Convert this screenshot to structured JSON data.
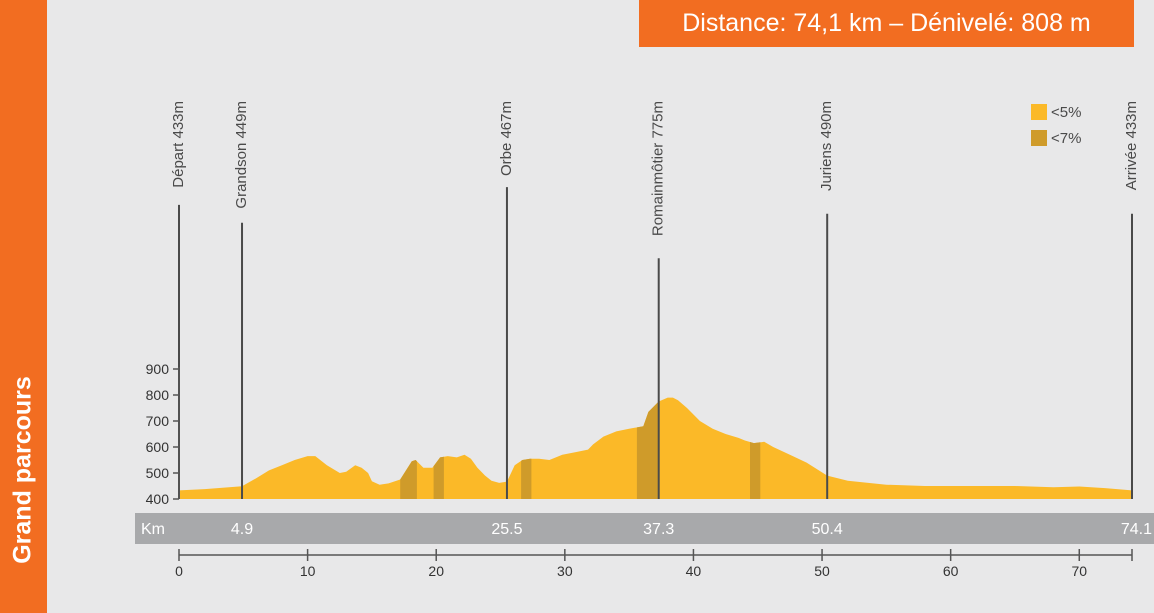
{
  "sidebar": {
    "title": "Grand parcours"
  },
  "header": {
    "summary": "Distance: 74,1 km – Dénivelé: 808 m"
  },
  "colors": {
    "accent": "#f26d21",
    "fill_low": "#fbb928",
    "fill_steep": "#cf9b2a",
    "km_bar": "#a8a9ab"
  },
  "chart_data": {
    "type": "area",
    "title": "",
    "xlabel": "",
    "ylabel": "",
    "xlim": [
      0,
      74.1
    ],
    "ylim": [
      400,
      900
    ],
    "y_ticks": [
      400,
      500,
      600,
      700,
      800,
      900
    ],
    "x_ticks": [
      0,
      10,
      20,
      30,
      40,
      50,
      60,
      70
    ],
    "km_bar_label": "Km",
    "km_markers": [
      "4.9",
      "25.5",
      "37.3",
      "50.4",
      "74.1"
    ],
    "legend": {
      "placement": "top-right",
      "items": [
        {
          "label": "<5%",
          "color": "#fbb928"
        },
        {
          "label": "<7%",
          "color": "#cf9b2a"
        }
      ]
    },
    "waypoints": [
      {
        "km": 0,
        "label": "Départ 433m"
      },
      {
        "km": 4.9,
        "label": "Grandson 449m"
      },
      {
        "km": 25.5,
        "label": "Orbe 467m"
      },
      {
        "km": 37.3,
        "label": "Romainmôtier 775m"
      },
      {
        "km": 50.4,
        "label": "Juriens 490m"
      },
      {
        "km": 74.1,
        "label": "Arrivée 433m"
      }
    ],
    "series": [
      {
        "x": [
          0,
          2,
          4.9,
          6,
          7,
          8,
          9,
          10,
          10.6,
          11.5,
          12.5,
          13,
          13.7,
          14.2,
          14.7,
          15,
          15.6,
          16.3,
          17.2,
          18.1,
          18.4,
          19,
          19.7,
          20.3,
          20.9,
          21.6,
          22.2,
          22.7,
          23.2,
          23.8,
          24.3,
          24.9,
          25.5,
          26.1,
          26.7,
          27.3,
          28,
          28.8,
          29.8,
          30.8,
          31.8,
          32.2,
          33,
          34,
          35,
          36.1,
          36.5,
          37.3,
          38,
          38.4,
          38.8,
          39.5,
          40.5,
          41.5,
          42.5,
          43.5,
          44,
          44.7,
          45.5,
          46.2,
          47.5,
          48.8,
          50.4,
          52,
          55,
          58,
          62,
          65,
          68,
          70,
          72,
          74.1
        ],
        "y": [
          433,
          438,
          449,
          480,
          510,
          530,
          550,
          565,
          565,
          530,
          500,
          505,
          530,
          520,
          500,
          468,
          455,
          460,
          475,
          545,
          550,
          520,
          520,
          560,
          565,
          560,
          570,
          555,
          520,
          490,
          470,
          462,
          467,
          530,
          550,
          555,
          555,
          550,
          570,
          580,
          590,
          610,
          640,
          660,
          670,
          680,
          735,
          775,
          790,
          790,
          780,
          750,
          700,
          670,
          650,
          635,
          625,
          615,
          620,
          600,
          570,
          540,
          490,
          470,
          455,
          450,
          450,
          450,
          445,
          448,
          442,
          433
        ]
      }
    ],
    "steep_segments": [
      [
        17.2,
        18.5
      ],
      [
        19.8,
        20.6
      ],
      [
        26.6,
        27.4
      ],
      [
        35.6,
        37.3
      ],
      [
        44.4,
        45.2
      ]
    ]
  }
}
